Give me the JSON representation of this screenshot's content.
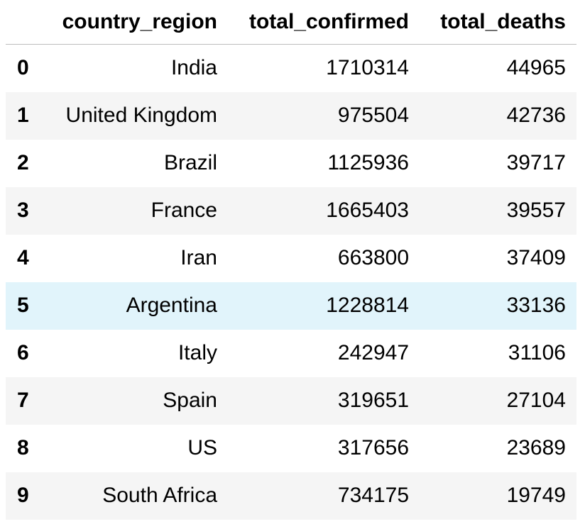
{
  "table": {
    "columns": [
      "",
      "country_region",
      "total_confirmed",
      "total_deaths"
    ],
    "rows": [
      {
        "index": "0",
        "country_region": "India",
        "total_confirmed": "1710314",
        "total_deaths": "44965"
      },
      {
        "index": "1",
        "country_region": "United Kingdom",
        "total_confirmed": "975504",
        "total_deaths": "42736"
      },
      {
        "index": "2",
        "country_region": "Brazil",
        "total_confirmed": "1125936",
        "total_deaths": "39717"
      },
      {
        "index": "3",
        "country_region": "France",
        "total_confirmed": "1665403",
        "total_deaths": "39557"
      },
      {
        "index": "4",
        "country_region": "Iran",
        "total_confirmed": "663800",
        "total_deaths": "37409"
      },
      {
        "index": "5",
        "country_region": "Argentina",
        "total_confirmed": "1228814",
        "total_deaths": "33136"
      },
      {
        "index": "6",
        "country_region": "Italy",
        "total_confirmed": "242947",
        "total_deaths": "31106"
      },
      {
        "index": "7",
        "country_region": "Spain",
        "total_confirmed": "319651",
        "total_deaths": "27104"
      },
      {
        "index": "8",
        "country_region": "US",
        "total_confirmed": "317656",
        "total_deaths": "23689"
      },
      {
        "index": "9",
        "country_region": "South Africa",
        "total_confirmed": "734175",
        "total_deaths": "19749"
      }
    ],
    "hovered_row": 5
  },
  "colors": {
    "stripe": "#f5f5f5",
    "hover": "#e1f4fb",
    "header_rule": "#bdbdbd"
  }
}
